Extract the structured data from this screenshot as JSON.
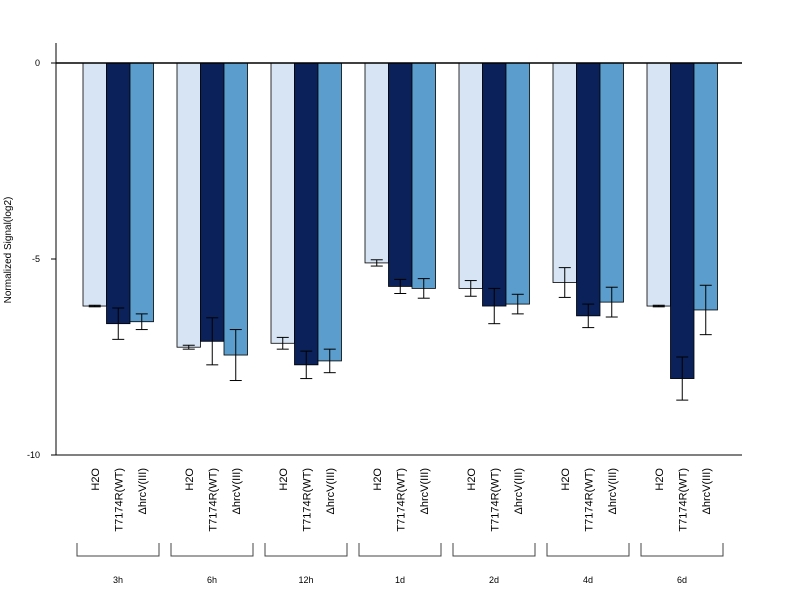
{
  "chart_data": {
    "type": "bar",
    "title": "",
    "xlabel": "",
    "ylabel": "Normalized Signal(log2)",
    "ylim": [
      -10,
      0.5
    ],
    "yticks": [
      0,
      -5,
      -10
    ],
    "grid": false,
    "legend": "none",
    "groups": [
      "3h",
      "6h",
      "12h",
      "1d",
      "2d",
      "4d",
      "6d"
    ],
    "colors": {
      "H2O": "#d6e4f3",
      "T7174R(WT)": "#0b2159",
      "ΔhrcV(III)": "#5b9ecd"
    },
    "series": [
      {
        "name": "H2O",
        "values": [
          -6.2,
          -7.25,
          -7.15,
          -5.1,
          -5.75,
          -5.6,
          -6.2
        ],
        "errors": [
          0.02,
          0.05,
          0.15,
          0.08,
          0.2,
          0.38,
          0.02
        ]
      },
      {
        "name": "T7174R(WT)",
        "values": [
          -6.65,
          -7.1,
          -7.7,
          -5.7,
          -6.2,
          -6.45,
          -8.05
        ],
        "errors": [
          0.4,
          0.6,
          0.35,
          0.18,
          0.45,
          0.3,
          0.55
        ]
      },
      {
        "name": "ΔhrcV(III)",
        "values": [
          -6.6,
          -7.45,
          -7.6,
          -5.75,
          -6.15,
          -6.1,
          -6.3
        ],
        "errors": [
          0.2,
          0.65,
          0.3,
          0.25,
          0.25,
          0.38,
          0.63
        ]
      }
    ]
  }
}
